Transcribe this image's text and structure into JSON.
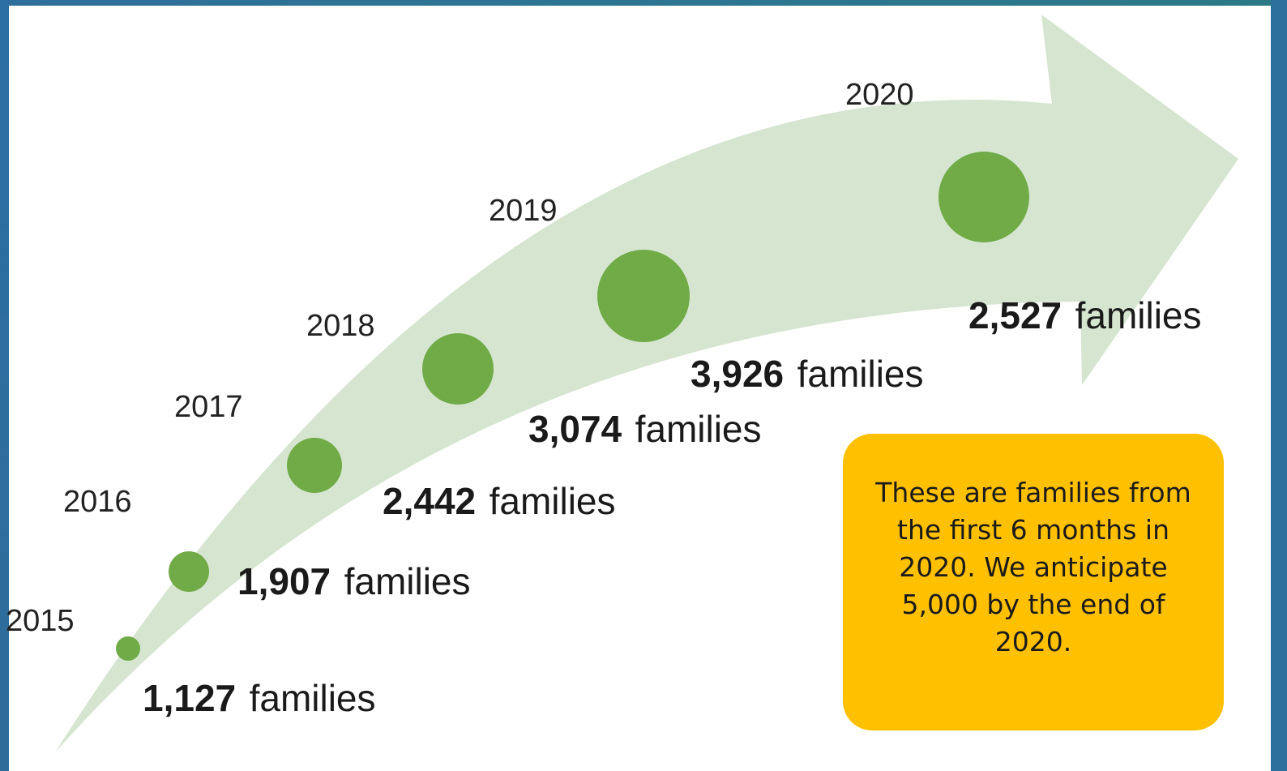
{
  "colors": {
    "arrow": "#d5e5cf",
    "dot": "#71ab48",
    "callout": "#ffc000",
    "frame": "#2c6f9c"
  },
  "timeline": [
    {
      "year": "2015",
      "count": "1,127",
      "unit": "families"
    },
    {
      "year": "2016",
      "count": "1,907",
      "unit": "families"
    },
    {
      "year": "2017",
      "count": "2,442",
      "unit": "families"
    },
    {
      "year": "2018",
      "count": "3,074",
      "unit": "families"
    },
    {
      "year": "2019",
      "count": "3,926",
      "unit": "families"
    },
    {
      "year": "2020",
      "count": "2,527",
      "unit": "families"
    }
  ],
  "callout": {
    "text": "These are families from the first 6 months in 2020. We anticipate 5,000 by the end of 2020."
  }
}
